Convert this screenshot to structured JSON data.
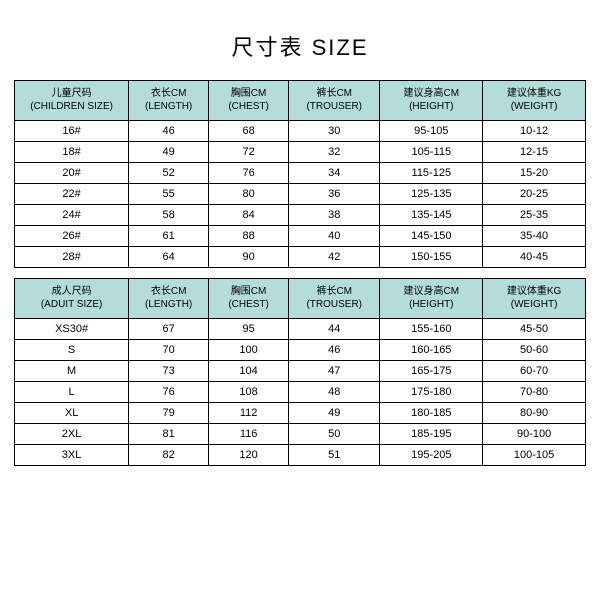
{
  "title": "尺寸表 SIZE",
  "header_bg": "#b4dcdb",
  "row_bg": "#ffffff",
  "border_color": "#000000",
  "col_widths_pct": [
    20,
    14,
    14,
    16,
    18,
    18
  ],
  "children": {
    "columns": [
      {
        "cn": "儿童尺码",
        "en": "(CHILDREN SIZE)"
      },
      {
        "cn": "衣长CM",
        "en": "(LENGTH)"
      },
      {
        "cn": "胸围CM",
        "en": "(CHEST)"
      },
      {
        "cn": "裤长CM",
        "en": "(TROUSER)"
      },
      {
        "cn": "建议身高CM",
        "en": "(HEIGHT)"
      },
      {
        "cn": "建议体重KG",
        "en": "(WEIGHT)"
      }
    ],
    "rows": [
      [
        "16#",
        "46",
        "68",
        "30",
        "95-105",
        "10-12"
      ],
      [
        "18#",
        "49",
        "72",
        "32",
        "105-115",
        "12-15"
      ],
      [
        "20#",
        "52",
        "76",
        "34",
        "115-125",
        "15-20"
      ],
      [
        "22#",
        "55",
        "80",
        "36",
        "125-135",
        "20-25"
      ],
      [
        "24#",
        "58",
        "84",
        "38",
        "135-145",
        "25-35"
      ],
      [
        "26#",
        "61",
        "88",
        "40",
        "145-150",
        "35-40"
      ],
      [
        "28#",
        "64",
        "90",
        "42",
        "150-155",
        "40-45"
      ]
    ]
  },
  "adult": {
    "columns": [
      {
        "cn": "成人尺码",
        "en": "(ADUIT SIZE)"
      },
      {
        "cn": "衣长CM",
        "en": "(LENGTH)"
      },
      {
        "cn": "胸围CM",
        "en": "(CHEST)"
      },
      {
        "cn": "裤长CM",
        "en": "(TROUSER)"
      },
      {
        "cn": "建议身高CM",
        "en": "(HEIGHT)"
      },
      {
        "cn": "建议体重KG",
        "en": "(WEIGHT)"
      }
    ],
    "rows": [
      [
        "XS30#",
        "67",
        "95",
        "44",
        "155-160",
        "45-50"
      ],
      [
        "S",
        "70",
        "100",
        "46",
        "160-165",
        "50-60"
      ],
      [
        "M",
        "73",
        "104",
        "47",
        "165-175",
        "60-70"
      ],
      [
        "L",
        "76",
        "108",
        "48",
        "175-180",
        "70-80"
      ],
      [
        "XL",
        "79",
        "112",
        "49",
        "180-185",
        "80-90"
      ],
      [
        "2XL",
        "81",
        "116",
        "50",
        "185-195",
        "90-100"
      ],
      [
        "3XL",
        "82",
        "120",
        "51",
        "195-205",
        "100-105"
      ]
    ]
  }
}
